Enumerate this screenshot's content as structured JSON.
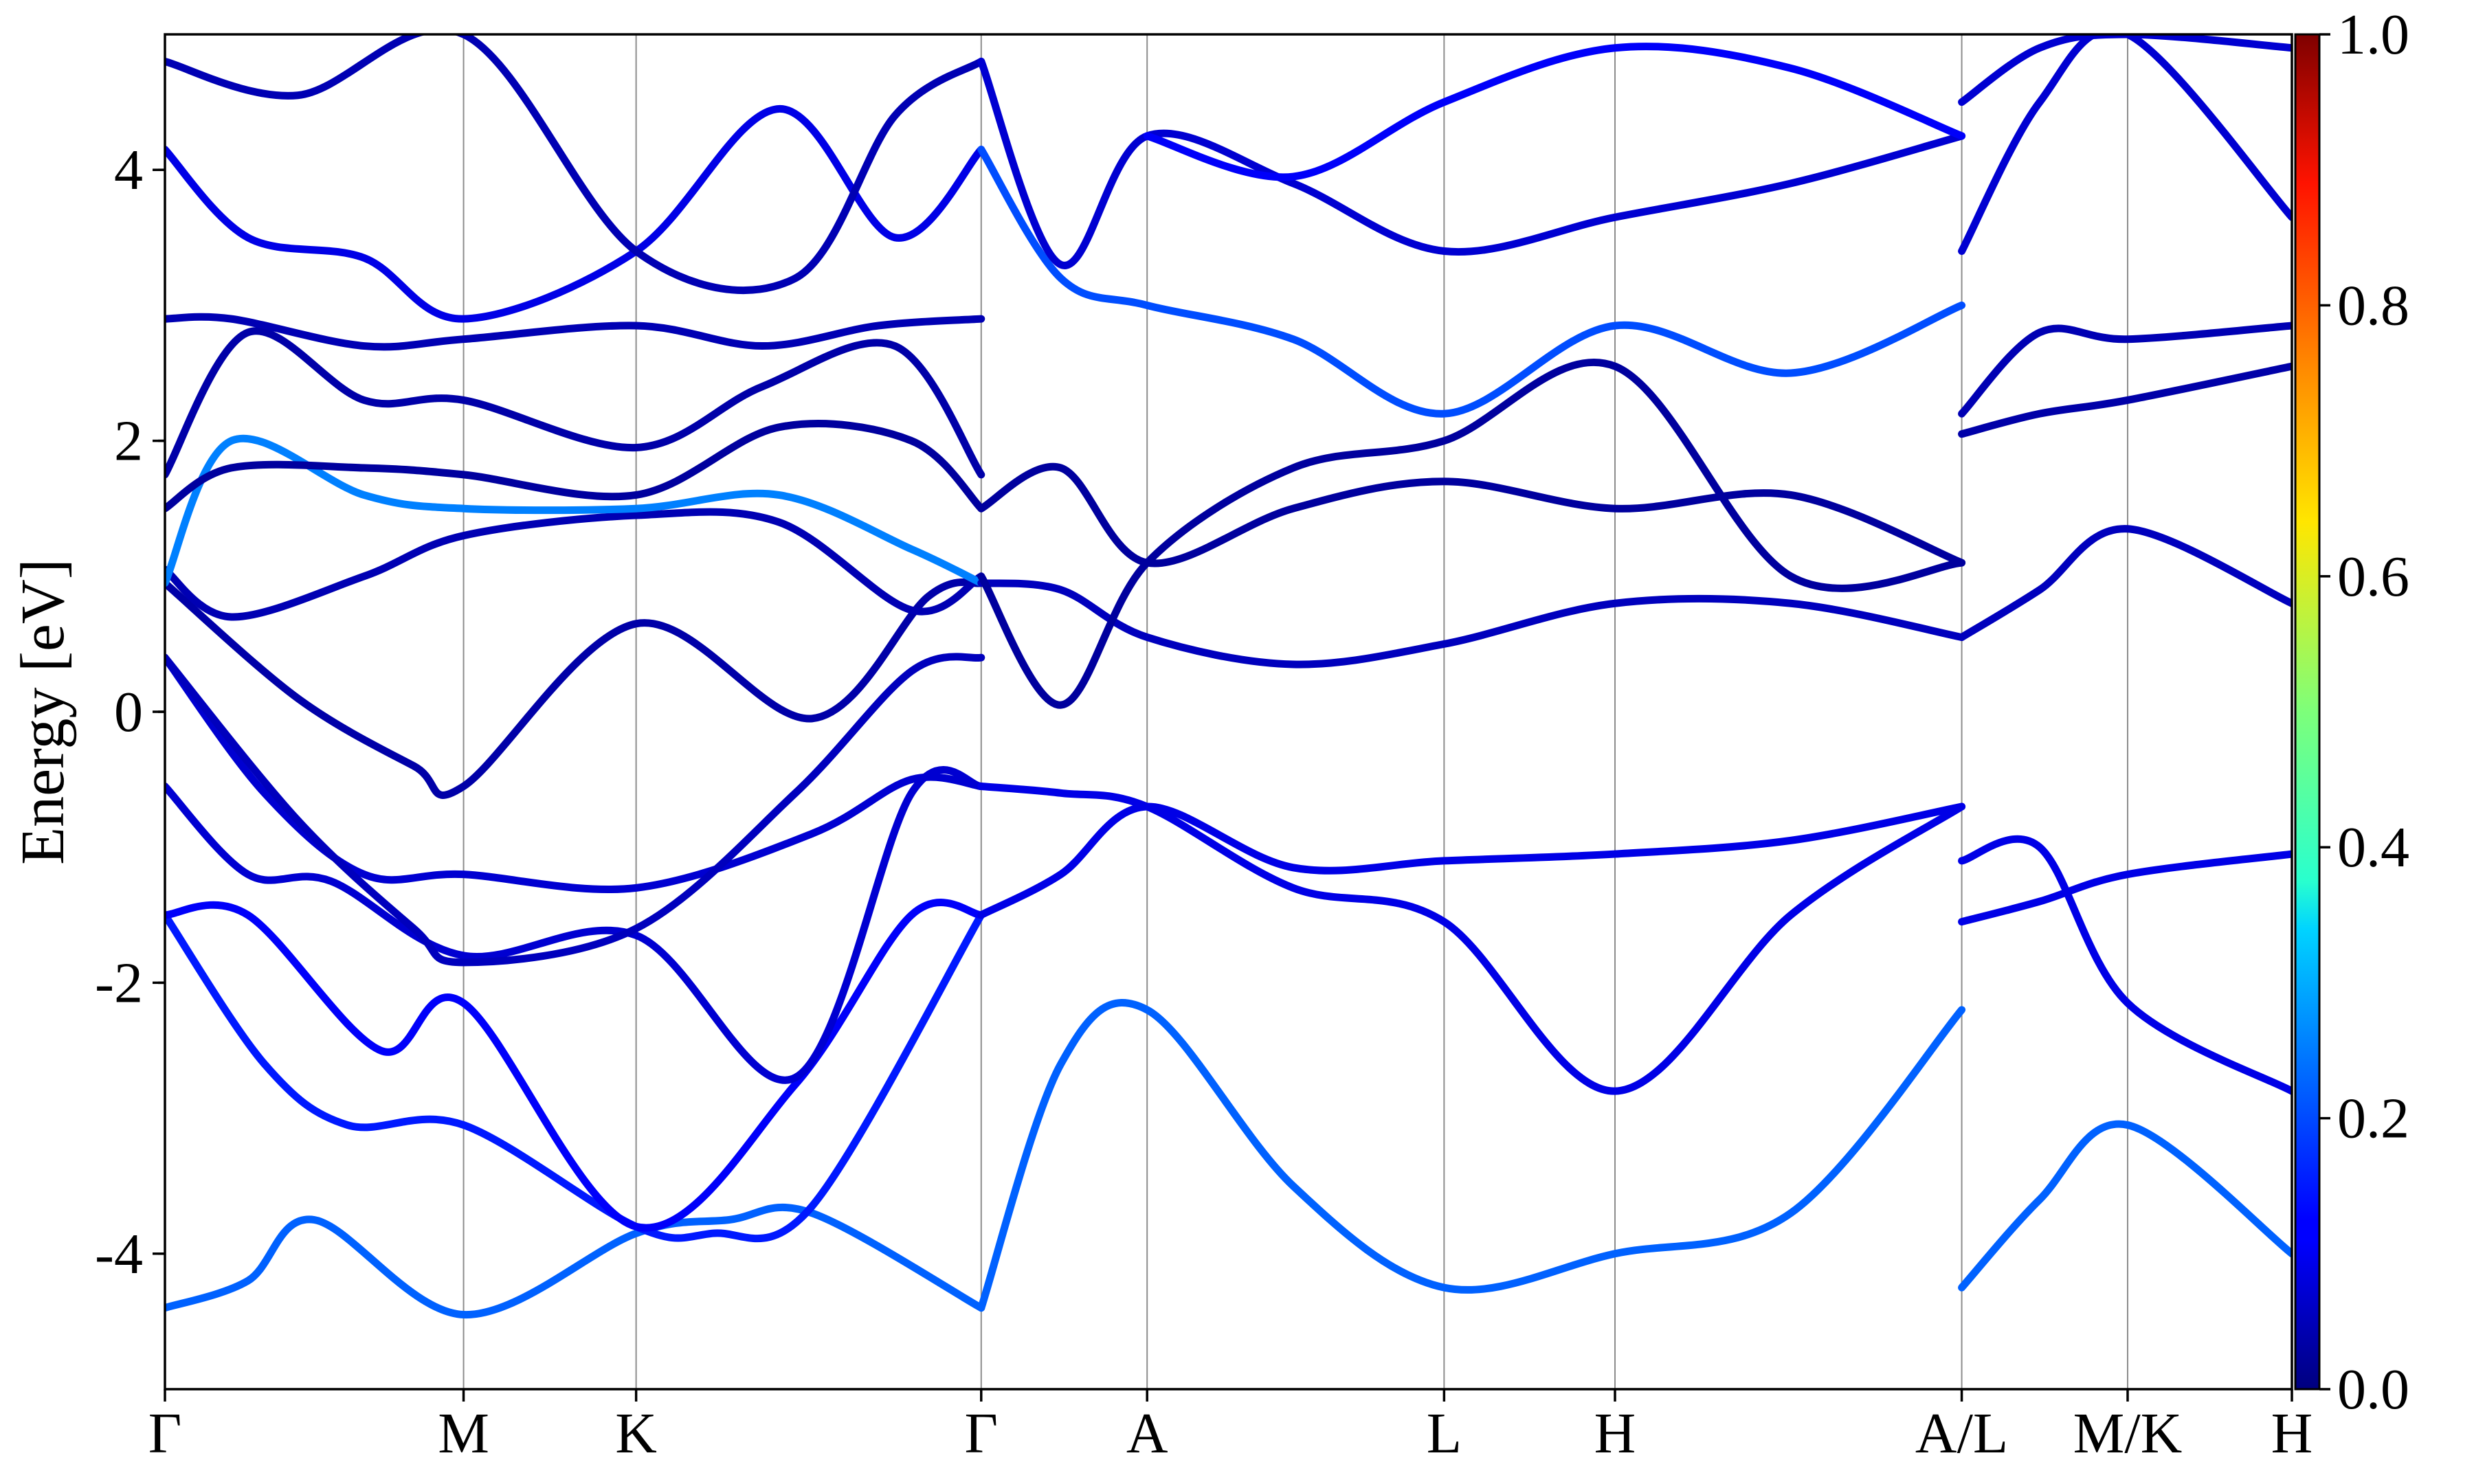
{
  "chart_data": {
    "type": "line",
    "ylabel": "Energy [eV]",
    "ylim": [
      -5,
      5
    ],
    "y_ticks": [
      "-4",
      "-2",
      "0",
      "2",
      "4"
    ],
    "x_ticks": [
      "Γ",
      "M",
      "K",
      "Γ",
      "A",
      "L",
      "H",
      "A/L",
      "M/K",
      "H"
    ],
    "x_tick_positions": [
      0,
      1.8,
      2.84,
      4.92,
      5.92,
      7.71,
      8.74,
      10.83,
      11.83,
      12.82
    ],
    "colorbar": {
      "colormap": "jet",
      "range": [
        0.0,
        1.0
      ],
      "tick_labels": [
        "0.0",
        "0.2",
        "0.4",
        "0.6",
        "0.8",
        "1.0"
      ]
    },
    "series": [
      {
        "x": [
          0,
          0.5,
          0.9,
          1.8,
          2.84,
          3.4,
          3.9,
          4.92
        ],
        "y": [
          -4.4,
          -4.2,
          -3.75,
          -4.45,
          -3.85,
          -3.75,
          -3.7,
          -4.4
        ],
        "weight": 0.22
      },
      {
        "x": [
          0,
          0.6,
          1.1,
          1.8,
          2.84,
          3.3,
          3.9,
          4.92
        ],
        "y": [
          -1.5,
          -2.6,
          -3.05,
          -3.05,
          -3.8,
          -3.85,
          -3.65,
          -1.5
        ],
        "weight": 0.15
      },
      {
        "x": [
          0,
          0.5,
          1.3,
          1.8,
          2.84,
          3.8,
          4.5,
          4.92
        ],
        "y": [
          -1.5,
          -1.5,
          -2.5,
          -2.15,
          -3.8,
          -2.75,
          -1.5,
          -1.5
        ],
        "weight": 0.12
      },
      {
        "x": [
          0,
          0.5,
          1.0,
          1.8,
          2.84,
          3.8,
          4.5,
          4.92
        ],
        "y": [
          -0.55,
          -1.2,
          -1.25,
          -1.8,
          -1.65,
          -2.7,
          -0.6,
          -0.55
        ],
        "weight": 0.08
      },
      {
        "x": [
          0,
          0.6,
          1.2,
          1.8,
          2.84,
          3.9,
          4.5,
          4.92
        ],
        "y": [
          0.4,
          -0.6,
          -1.2,
          -1.2,
          -1.3,
          -0.9,
          -0.5,
          -0.55
        ],
        "weight": 0.08
      },
      {
        "x": [
          0,
          0.8,
          1.5,
          1.8,
          2.84,
          3.8,
          4.5,
          4.92
        ],
        "y": [
          0.4,
          -0.8,
          -1.6,
          -1.85,
          -1.6,
          -0.6,
          0.3,
          0.4
        ],
        "weight": 0.06
      },
      {
        "x": [
          0,
          0.8,
          1.5,
          1.8,
          2.84,
          3.9,
          4.6,
          4.92
        ],
        "y": [
          0.95,
          0.1,
          -0.4,
          -0.55,
          0.65,
          -0.05,
          0.85,
          0.95
        ],
        "weight": 0.04
      },
      {
        "x": [
          0,
          0.4,
          1.2,
          1.8,
          2.84,
          3.7,
          4.5,
          4.92
        ],
        "y": [
          1.05,
          0.7,
          1.0,
          1.3,
          1.45,
          1.4,
          0.75,
          1.0
        ],
        "weight": 0.05
      },
      {
        "x": [
          0,
          0.4,
          1.2,
          1.8,
          2.84,
          3.7,
          4.5,
          4.92
        ],
        "y": [
          0.95,
          2.0,
          1.6,
          1.5,
          1.5,
          1.6,
          1.2,
          0.95
        ],
        "weight": 0.25
      },
      {
        "x": [
          0,
          0.4,
          1.2,
          1.8,
          2.84,
          3.7,
          4.5,
          4.92
        ],
        "y": [
          1.5,
          1.8,
          1.8,
          1.75,
          1.6,
          2.1,
          2.0,
          1.5
        ],
        "weight": 0.03
      },
      {
        "x": [
          0,
          0.5,
          1.2,
          1.8,
          2.84,
          3.6,
          4.4,
          4.92
        ],
        "y": [
          1.75,
          2.8,
          2.3,
          2.3,
          1.95,
          2.4,
          2.7,
          1.75
        ],
        "weight": 0.04
      },
      {
        "x": [
          0,
          0.4,
          1.2,
          1.8,
          2.84,
          3.6,
          4.3,
          4.92
        ],
        "y": [
          2.9,
          2.9,
          2.7,
          2.75,
          2.85,
          2.7,
          2.85,
          2.9
        ],
        "weight": 0.05
      },
      {
        "x": [
          0,
          0.5,
          1.2,
          1.8,
          2.84,
          3.7,
          4.4,
          4.92
        ],
        "y": [
          4.15,
          3.5,
          3.35,
          2.9,
          3.4,
          4.45,
          3.5,
          4.15
        ],
        "weight": 0.1
      },
      {
        "x": [
          0,
          0.8,
          1.8,
          2.84,
          3.8,
          4.4,
          4.92
        ],
        "y": [
          4.8,
          4.55,
          5.0,
          3.4,
          3.2,
          4.4,
          4.8
        ],
        "weight": 0.05
      },
      {
        "x": [
          4.92,
          5.4,
          5.92,
          6.8,
          7.71,
          8.74,
          9.8,
          10.83
        ],
        "y": [
          -4.4,
          -2.6,
          -2.2,
          -3.5,
          -4.25,
          -4.0,
          -3.7,
          -2.2
        ],
        "weight": 0.22
      },
      {
        "x": [
          4.92,
          5.4,
          5.92,
          6.8,
          7.71,
          8.74,
          9.8,
          10.83
        ],
        "y": [
          -1.5,
          -1.2,
          -0.7,
          -1.15,
          -1.1,
          -1.05,
          -0.95,
          -0.7
        ],
        "weight": 0.1
      },
      {
        "x": [
          4.92,
          5.4,
          5.92,
          6.8,
          7.71,
          8.74,
          9.8,
          10.83
        ],
        "y": [
          -0.55,
          -0.6,
          -0.7,
          -1.3,
          -1.55,
          -2.8,
          -1.5,
          -0.7
        ],
        "weight": 0.1
      },
      {
        "x": [
          4.92,
          5.4,
          5.92,
          6.8,
          7.71,
          8.74,
          9.8,
          10.83
        ],
        "y": [
          0.95,
          0.9,
          0.55,
          0.35,
          0.5,
          0.8,
          0.8,
          0.55
        ],
        "weight": 0.06
      },
      {
        "x": [
          4.92,
          5.4,
          5.92,
          6.8,
          7.71,
          8.74,
          9.8,
          10.83
        ],
        "y": [
          1.0,
          0.05,
          1.1,
          1.8,
          2.0,
          2.55,
          1.0,
          1.1
        ],
        "weight": 0.03
      },
      {
        "x": [
          4.92,
          5.4,
          5.92,
          6.8,
          7.71,
          8.74,
          9.8,
          10.83
        ],
        "y": [
          1.5,
          1.8,
          1.1,
          1.5,
          1.7,
          1.5,
          1.6,
          1.1
        ],
        "weight": 0.03
      },
      {
        "x": [
          4.92,
          5.4,
          5.92,
          6.8,
          7.71,
          8.74,
          9.8,
          10.83
        ],
        "y": [
          4.15,
          3.2,
          3.0,
          2.75,
          2.2,
          2.85,
          2.5,
          3.0
        ],
        "weight": 0.2
      },
      {
        "x": [
          4.92,
          5.4,
          5.92,
          6.8,
          7.71,
          8.74,
          9.8,
          10.83
        ],
        "y": [
          4.8,
          3.3,
          4.25,
          3.9,
          3.4,
          3.65,
          3.9,
          4.25
        ],
        "weight": 0.08
      },
      {
        "x": [
          5.92,
          6.8,
          7.71,
          8.74,
          9.8,
          10.83
        ],
        "y": [
          4.25,
          3.95,
          4.5,
          4.9,
          4.75,
          4.25
        ],
        "weight": 0.12
      },
      {
        "x": [
          10.83,
          11.3,
          11.83,
          12.82
        ],
        "y": [
          -4.25,
          -3.6,
          -3.05,
          -4.0
        ],
        "weight": 0.22
      },
      {
        "x": [
          10.83,
          11.3,
          11.83,
          12.82
        ],
        "y": [
          -1.55,
          -1.4,
          -1.2,
          -1.05
        ],
        "weight": 0.1
      },
      {
        "x": [
          10.83,
          11.3,
          11.83,
          12.82
        ],
        "y": [
          -1.1,
          -1.0,
          -2.15,
          -2.8
        ],
        "weight": 0.1
      },
      {
        "x": [
          10.83,
          11.3,
          11.83,
          12.82
        ],
        "y": [
          0.55,
          0.9,
          1.35,
          0.8
        ],
        "weight": 0.06
      },
      {
        "x": [
          10.83,
          11.3,
          11.83,
          12.82
        ],
        "y": [
          2.05,
          2.2,
          2.3,
          2.55
        ],
        "weight": 0.04
      },
      {
        "x": [
          10.83,
          11.3,
          11.83,
          12.82
        ],
        "y": [
          2.2,
          2.8,
          2.75,
          2.85
        ],
        "weight": 0.05
      },
      {
        "x": [
          10.83,
          11.3,
          11.83,
          12.82
        ],
        "y": [
          3.4,
          4.5,
          5.0,
          3.65
        ],
        "weight": 0.08
      },
      {
        "x": [
          10.83,
          11.3,
          11.83,
          12.82
        ],
        "y": [
          4.5,
          4.9,
          5.0,
          4.9
        ],
        "weight": 0.08
      }
    ]
  }
}
